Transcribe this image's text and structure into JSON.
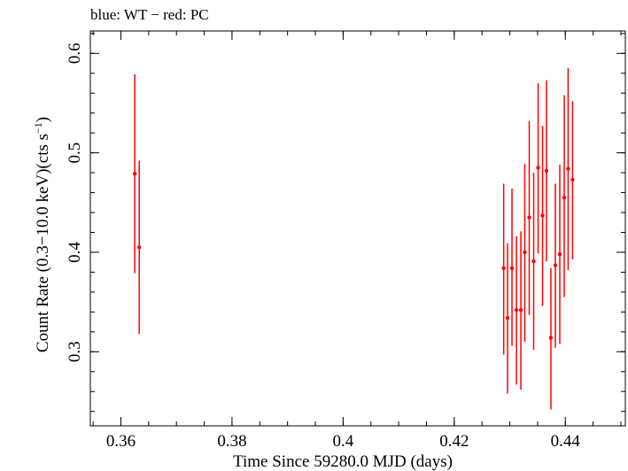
{
  "chart_data": {
    "type": "scatter",
    "title": "blue: WT − red: PC",
    "xlabel": "Time Since 59280.0 MJD (days)",
    "ylabel_main": "Count Rate (0.3−10.0 keV)(cts s",
    "ylabel_sup": "−1",
    "ylabel_end": ")",
    "xlim": [
      0.3545,
      0.4508
    ],
    "ylim": [
      0.2255,
      0.6225
    ],
    "x_ticks": [
      {
        "value": 0.36,
        "label": "0.36"
      },
      {
        "value": 0.38,
        "label": "0.38"
      },
      {
        "value": 0.4,
        "label": "0.4"
      },
      {
        "value": 0.42,
        "label": "0.42"
      },
      {
        "value": 0.44,
        "label": "0.44"
      }
    ],
    "y_ticks": [
      {
        "value": 0.3,
        "label": "0.3"
      },
      {
        "value": 0.4,
        "label": "0.4"
      },
      {
        "value": 0.5,
        "label": "0.5"
      },
      {
        "value": 0.6,
        "label": "0.6"
      }
    ],
    "x_minor_step": 0.005,
    "y_minor_step": 0.02,
    "grid": false,
    "series": [
      {
        "name": "PC",
        "color": "#ff0000",
        "points": [
          {
            "x": 0.3625,
            "y": 0.479,
            "ylo": 0.379,
            "yhi": 0.579
          },
          {
            "x": 0.3633,
            "y": 0.405,
            "ylo": 0.318,
            "yhi": 0.492
          },
          {
            "x": 0.4289,
            "y": 0.384,
            "ylo": 0.297,
            "yhi": 0.469
          },
          {
            "x": 0.4296,
            "y": 0.334,
            "ylo": 0.258,
            "yhi": 0.409
          },
          {
            "x": 0.4304,
            "y": 0.384,
            "ylo": 0.306,
            "yhi": 0.464
          },
          {
            "x": 0.4312,
            "y": 0.342,
            "ylo": 0.267,
            "yhi": 0.416
          },
          {
            "x": 0.432,
            "y": 0.342,
            "ylo": 0.262,
            "yhi": 0.421
          },
          {
            "x": 0.4327,
            "y": 0.4,
            "ylo": 0.31,
            "yhi": 0.489
          },
          {
            "x": 0.4335,
            "y": 0.435,
            "ylo": 0.337,
            "yhi": 0.532
          },
          {
            "x": 0.4343,
            "y": 0.391,
            "ylo": 0.302,
            "yhi": 0.48
          },
          {
            "x": 0.4351,
            "y": 0.485,
            "ylo": 0.399,
            "yhi": 0.57
          },
          {
            "x": 0.4359,
            "y": 0.437,
            "ylo": 0.346,
            "yhi": 0.527
          },
          {
            "x": 0.4366,
            "y": 0.482,
            "ylo": 0.391,
            "yhi": 0.573
          },
          {
            "x": 0.4374,
            "y": 0.314,
            "ylo": 0.242,
            "yhi": 0.384
          },
          {
            "x": 0.4382,
            "y": 0.387,
            "ylo": 0.304,
            "yhi": 0.469
          },
          {
            "x": 0.439,
            "y": 0.398,
            "ylo": 0.308,
            "yhi": 0.488
          },
          {
            "x": 0.4398,
            "y": 0.455,
            "ylo": 0.355,
            "yhi": 0.558
          },
          {
            "x": 0.4405,
            "y": 0.484,
            "ylo": 0.382,
            "yhi": 0.585
          },
          {
            "x": 0.4413,
            "y": 0.473,
            "ylo": 0.393,
            "yhi": 0.552
          }
        ]
      }
    ]
  }
}
